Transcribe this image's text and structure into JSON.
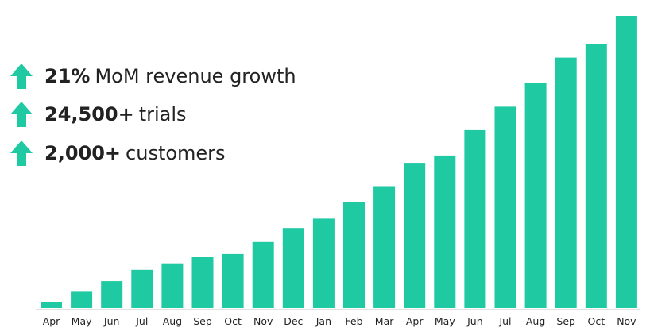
{
  "colors": {
    "bar": "#1fc9a2",
    "arrow": "#1fc9a2",
    "axis": "#d9d9d9",
    "text": "#222222"
  },
  "stats": [
    {
      "icon": "up-arrow-icon",
      "value": "21%",
      "label": "MoM revenue growth"
    },
    {
      "icon": "up-arrow-icon",
      "value": "24,500+",
      "label": "trials"
    },
    {
      "icon": "up-arrow-icon",
      "value": "2,000+",
      "label": "customers"
    }
  ],
  "chart_data": {
    "type": "bar",
    "title": "",
    "xlabel": "",
    "ylabel": "",
    "grid": false,
    "categories": [
      "Apr",
      "May",
      "Jun",
      "Jul",
      "Aug",
      "Sep",
      "Oct",
      "Nov",
      "Dec",
      "Jan",
      "Feb",
      "Mar",
      "Apr",
      "May",
      "Jun",
      "Jul",
      "Aug",
      "Sep",
      "Oct",
      "Nov"
    ],
    "values": [
      2,
      5.6,
      9.2,
      13.1,
      15.3,
      17.4,
      18.5,
      22.6,
      27.4,
      30.6,
      36.3,
      41.7,
      49.7,
      52.2,
      60.9,
      68.9,
      76.9,
      85.7,
      90.4,
      100
    ],
    "ylim": [
      0,
      100
    ]
  }
}
